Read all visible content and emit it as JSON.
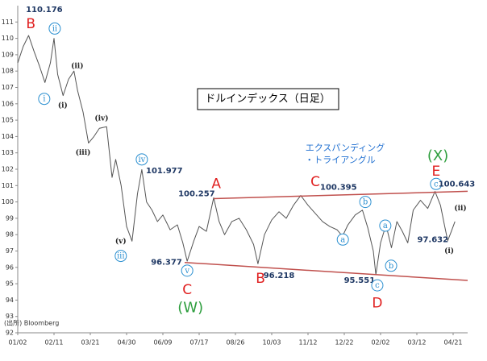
{
  "chart_data": {
    "type": "line",
    "title": "ドルインデックス（日足）",
    "pattern_label": [
      "エクスパンディング",
      "・トライアングル"
    ],
    "source": "(出所) Bloomberg",
    "xlim": [
      0,
      12.4
    ],
    "xticks": [
      {
        "value": 0,
        "label": "01/02"
      },
      {
        "value": 1,
        "label": "02/11"
      },
      {
        "value": 2,
        "label": "03/21"
      },
      {
        "value": 3,
        "label": "04/30"
      },
      {
        "value": 4,
        "label": "06/09"
      },
      {
        "value": 5,
        "label": "07/17"
      },
      {
        "value": 6,
        "label": "08/26"
      },
      {
        "value": 7,
        "label": "10/03"
      },
      {
        "value": 8,
        "label": "11/12"
      },
      {
        "value": 9,
        "label": "12/22"
      },
      {
        "value": 10,
        "label": "02/02"
      },
      {
        "value": 11,
        "label": "03/12"
      },
      {
        "value": 12,
        "label": "04/21"
      }
    ],
    "ylim": [
      92,
      112
    ],
    "yticks": [
      92,
      93,
      94,
      95,
      96,
      97,
      98,
      99,
      100,
      101,
      102,
      103,
      104,
      105,
      106,
      107,
      108,
      109,
      110,
      111
    ],
    "series": [
      {
        "color": "#555555",
        "x": [
          0,
          0.15,
          0.3,
          0.45,
          0.6,
          0.75,
          0.9,
          1.0,
          1.1,
          1.25,
          1.4,
          1.55,
          1.65,
          1.8,
          1.95,
          2.1,
          2.25,
          2.45,
          2.6,
          2.7,
          2.85,
          3.0,
          3.15,
          3.3,
          3.42,
          3.55,
          3.7,
          3.85,
          4.0,
          4.2,
          4.4,
          4.55,
          4.67,
          4.85,
          5.0,
          5.2,
          5.4,
          5.55,
          5.7,
          5.9,
          6.1,
          6.3,
          6.5,
          6.62,
          6.8,
          7.0,
          7.2,
          7.4,
          7.6,
          7.8,
          8.0,
          8.2,
          8.4,
          8.6,
          8.8,
          8.95,
          9.1,
          9.3,
          9.5,
          9.65,
          9.8,
          9.87,
          10.0,
          10.15,
          10.3,
          10.45,
          10.6,
          10.75,
          10.9,
          11.1,
          11.3,
          11.5,
          11.65,
          11.75,
          11.85,
          11.95,
          12.05
        ],
        "values": [
          108.5,
          109.5,
          110.176,
          109.2,
          108.3,
          107.3,
          108.5,
          110.0,
          107.8,
          106.5,
          107.5,
          108.0,
          106.8,
          105.5,
          103.6,
          104.0,
          104.5,
          104.6,
          101.5,
          102.6,
          101.0,
          98.5,
          97.6,
          100.5,
          101.977,
          100.0,
          99.5,
          98.8,
          99.2,
          98.3,
          98.6,
          97.5,
          96.377,
          97.6,
          98.5,
          98.2,
          100.257,
          98.8,
          98.0,
          98.8,
          99.0,
          98.3,
          97.4,
          96.218,
          98.0,
          98.9,
          99.4,
          99.0,
          99.8,
          100.395,
          99.8,
          99.3,
          98.8,
          98.5,
          98.3,
          97.9,
          98.6,
          99.2,
          99.5,
          98.4,
          97.0,
          95.551,
          97.5,
          98.6,
          97.2,
          98.8,
          98.2,
          97.5,
          99.5,
          100.1,
          99.6,
          100.643,
          99.8,
          98.7,
          97.632,
          98.2,
          98.8
        ]
      }
    ],
    "trend_lines": [
      {
        "color": "#c0504d",
        "x": [
          5.4,
          12.4
        ],
        "y": [
          100.2,
          100.65
        ]
      },
      {
        "color": "#c0504d",
        "x": [
          4.6,
          12.4
        ],
        "y": [
          96.3,
          95.2
        ]
      }
    ],
    "annotations": [
      {
        "text": "110.176",
        "x": 0.73,
        "y": 111.75,
        "style": "value"
      },
      {
        "text": "B",
        "x": 0.36,
        "y": 110.87,
        "style": "wave-red"
      },
      {
        "text": "ii",
        "x": 1.02,
        "y": 110.6,
        "style": "circle"
      },
      {
        "text": "i",
        "x": 0.73,
        "y": 106.3,
        "style": "circle"
      },
      {
        "text": "(i)",
        "x": 1.24,
        "y": 105.9,
        "style": "paren"
      },
      {
        "text": "(ii)",
        "x": 1.64,
        "y": 108.3,
        "style": "paren"
      },
      {
        "text": "(iii)",
        "x": 1.8,
        "y": 103,
        "style": "paren"
      },
      {
        "text": "(iv)",
        "x": 2.31,
        "y": 105.1,
        "style": "paren"
      },
      {
        "text": "iv",
        "x": 3.42,
        "y": 102.6,
        "style": "circle"
      },
      {
        "text": "101.977",
        "x": 4.04,
        "y": 101.9,
        "style": "value"
      },
      {
        "text": "(v)",
        "x": 2.84,
        "y": 97.6,
        "style": "paren"
      },
      {
        "text": "iii",
        "x": 2.84,
        "y": 96.7,
        "style": "circle"
      },
      {
        "text": "A",
        "x": 5.47,
        "y": 101.1,
        "style": "wave-red"
      },
      {
        "text": "100.257",
        "x": 4.93,
        "y": 100.5,
        "style": "value"
      },
      {
        "text": "C",
        "x": 8.2,
        "y": 101.2,
        "style": "wave-red"
      },
      {
        "text": "100.395",
        "x": 8.84,
        "y": 100.9,
        "style": "value"
      },
      {
        "text": "b",
        "x": 9.58,
        "y": 100,
        "style": "circle"
      },
      {
        "text": "a",
        "x": 8.96,
        "y": 97.7,
        "style": "circle"
      },
      {
        "text": "96.377",
        "x": 4.1,
        "y": 96.3,
        "style": "value"
      },
      {
        "text": "v",
        "x": 4.67,
        "y": 95.8,
        "style": "circle"
      },
      {
        "text": "C",
        "x": 4.67,
        "y": 94.6,
        "style": "wave-red"
      },
      {
        "text": "(W)",
        "x": 4.76,
        "y": 93.5,
        "style": "wave-green"
      },
      {
        "text": "96.218",
        "x": 7.2,
        "y": 95.5,
        "style": "value"
      },
      {
        "text": "B",
        "x": 6.69,
        "y": 95.3,
        "style": "wave-red"
      },
      {
        "text": "95.551",
        "x": 9.42,
        "y": 95.2,
        "style": "value"
      },
      {
        "text": "c",
        "x": 9.91,
        "y": 94.9,
        "style": "circle"
      },
      {
        "text": "D",
        "x": 9.91,
        "y": 93.8,
        "style": "wave-red"
      },
      {
        "text": "a",
        "x": 10.13,
        "y": 98.55,
        "style": "circle"
      },
      {
        "text": "b",
        "x": 10.29,
        "y": 96.1,
        "style": "circle"
      },
      {
        "text": "(X)",
        "x": 11.58,
        "y": 102.8,
        "style": "wave-green"
      },
      {
        "text": "E",
        "x": 11.53,
        "y": 101.85,
        "style": "wave-red"
      },
      {
        "text": "c",
        "x": 11.53,
        "y": 101.1,
        "style": "circle"
      },
      {
        "text": "100.643",
        "x": 12.1,
        "y": 101.1,
        "style": "value"
      },
      {
        "text": "(ii)",
        "x": 12.2,
        "y": 99.6,
        "style": "paren"
      },
      {
        "text": "97.632",
        "x": 11.44,
        "y": 97.7,
        "style": "value"
      },
      {
        "text": "(i)",
        "x": 11.89,
        "y": 97.0,
        "style": "paren"
      }
    ]
  }
}
